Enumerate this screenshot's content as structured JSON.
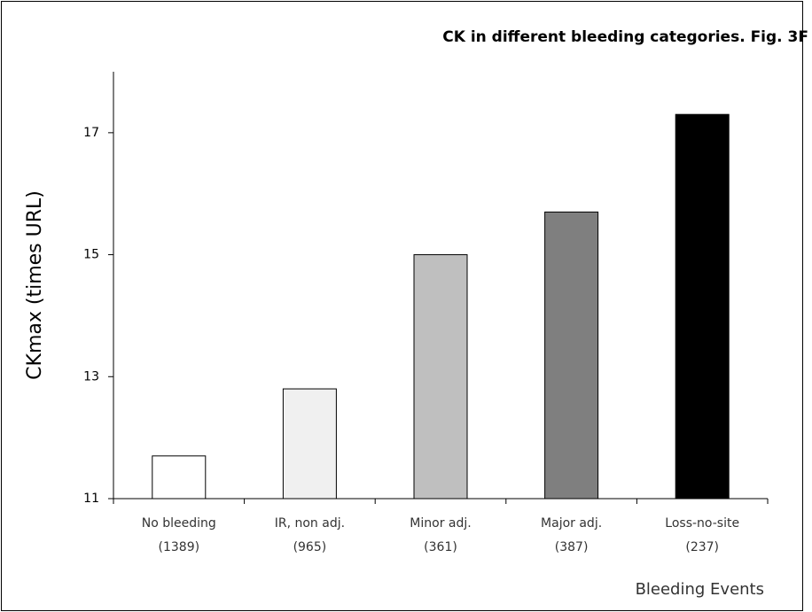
{
  "chart_data": {
    "type": "bar",
    "title": "CK in different bleeding categories. Fig. 3F",
    "x_label": "Bleeding Events",
    "y_label": "CKmax (times URL)",
    "categories": [
      [
        "No bleeding",
        "(1389)"
      ],
      [
        "IR, non adj.",
        "(965)"
      ],
      [
        "Minor adj.",
        "(361)"
      ],
      [
        "Major adj.",
        "(387)"
      ],
      [
        "Loss-no-site",
        "(237)"
      ]
    ],
    "values": [
      11.7,
      12.8,
      15.0,
      15.7,
      17.3
    ],
    "colors": [
      "#ffffff",
      "#f0f0f0",
      "#bfbfbf",
      "#7f7f7f",
      "#000000"
    ],
    "ylim": [
      11,
      18
    ],
    "yticks": [
      11,
      13,
      15,
      17
    ],
    "grid": false
  }
}
